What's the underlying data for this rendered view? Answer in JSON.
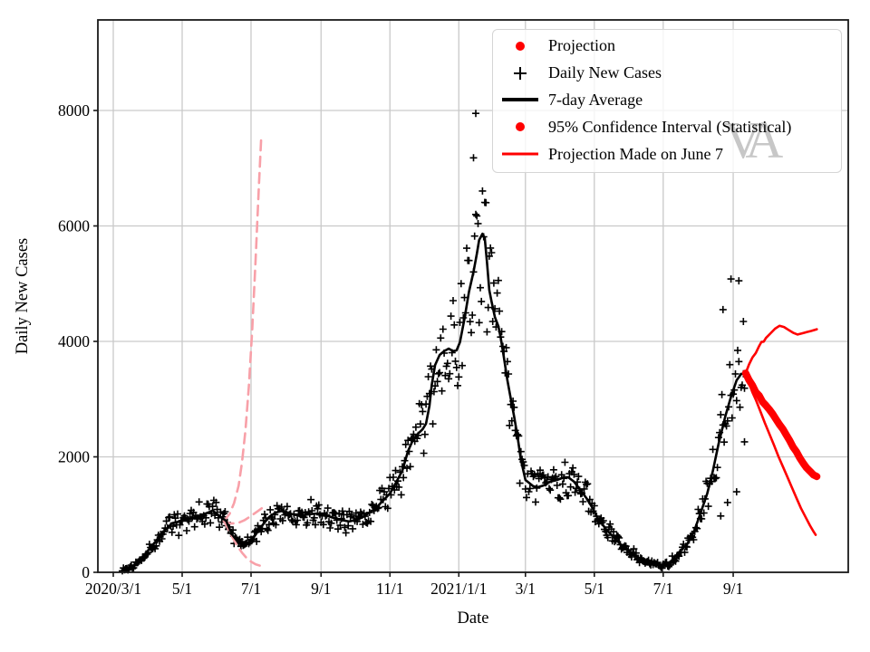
{
  "figure": {
    "watermark": "VA",
    "background": "#ffffff"
  },
  "axes": {
    "xlabel": "Date",
    "ylabel": "Daily New Cases",
    "x_ticks": [
      {
        "day": 0,
        "label": "2020/3/1"
      },
      {
        "day": 61,
        "label": "5/1"
      },
      {
        "day": 122,
        "label": "7/1"
      },
      {
        "day": 184,
        "label": "9/1"
      },
      {
        "day": 245,
        "label": "11/1"
      },
      {
        "day": 306,
        "label": "2021/1/1"
      },
      {
        "day": 365,
        "label": "3/1"
      },
      {
        "day": 426,
        "label": "5/1"
      },
      {
        "day": 487,
        "label": "7/1"
      },
      {
        "day": 549,
        "label": "9/1"
      }
    ],
    "y_ticks": [
      0,
      2000,
      4000,
      6000,
      8000
    ],
    "x_range_days": [
      -13.6,
      651
    ],
    "y_range": [
      0,
      9569
    ],
    "grid": true,
    "grid_color": "#c9c9c9",
    "spine_color": "#1a1a1a"
  },
  "legend": {
    "position": "upper right",
    "items": [
      {
        "marker": "dot",
        "color": "#ff0000",
        "label": "Projection"
      },
      {
        "marker": "plus",
        "color": "#000000",
        "label": "Daily New Cases"
      },
      {
        "marker": "line",
        "color": "#000000",
        "label": "7-day Average"
      },
      {
        "marker": "dot",
        "color": "#ff0000",
        "label": "95% Confidence Interval (Statistical)"
      },
      {
        "marker": "line",
        "color": "#ff0000",
        "label": "Projection Made on June 7"
      }
    ]
  },
  "colors": {
    "cases": "#000000",
    "average": "#000000",
    "projection": "#ff0000",
    "old_projection": "#f8a0a8",
    "watermark": "#c7c7c7"
  },
  "chart_data": {
    "type": "line",
    "title": "",
    "xlabel": "Date",
    "ylabel": "Daily New Cases",
    "x_unit": "days since 2020/3/1",
    "ylim": [
      0,
      9569
    ],
    "legend_position": "upper right",
    "series": [
      {
        "name": "7-day Average",
        "style": "solid",
        "color": "#000000",
        "width": 2.6,
        "points": [
          [
            14,
            60
          ],
          [
            20,
            150
          ],
          [
            28,
            310
          ],
          [
            36,
            500
          ],
          [
            44,
            690
          ],
          [
            52,
            850
          ],
          [
            61,
            890
          ],
          [
            68,
            925
          ],
          [
            76,
            975
          ],
          [
            84,
            1035
          ],
          [
            88,
            1070
          ],
          [
            94,
            975
          ],
          [
            100,
            890
          ],
          [
            105,
            660
          ],
          [
            110,
            535
          ],
          [
            115,
            455
          ],
          [
            120,
            500
          ],
          [
            124,
            595
          ],
          [
            129,
            735
          ],
          [
            134,
            865
          ],
          [
            139,
            975
          ],
          [
            144,
            1035
          ],
          [
            150,
            1070
          ],
          [
            156,
            1020
          ],
          [
            165,
            975
          ],
          [
            173,
            1005
          ],
          [
            181,
            1020
          ],
          [
            186,
            1005
          ],
          [
            193,
            955
          ],
          [
            201,
            910
          ],
          [
            209,
            880
          ],
          [
            215,
            910
          ],
          [
            221,
            955
          ],
          [
            227,
            1035
          ],
          [
            233,
            1115
          ],
          [
            238,
            1225
          ],
          [
            245,
            1365
          ],
          [
            250,
            1540
          ],
          [
            256,
            1760
          ],
          [
            261,
            2100
          ],
          [
            265,
            2275
          ],
          [
            269,
            2385
          ],
          [
            274,
            2480
          ],
          [
            277,
            2575
          ],
          [
            280,
            2885
          ],
          [
            282,
            3245
          ],
          [
            285,
            3590
          ],
          [
            289,
            3765
          ],
          [
            293,
            3830
          ],
          [
            297,
            3875
          ],
          [
            301,
            3830
          ],
          [
            304,
            3845
          ],
          [
            307,
            3985
          ],
          [
            311,
            4390
          ],
          [
            315,
            4860
          ],
          [
            319,
            5205
          ],
          [
            322,
            5520
          ],
          [
            324,
            5755
          ],
          [
            327,
            5865
          ],
          [
            329,
            5790
          ],
          [
            331,
            5365
          ],
          [
            333,
            4890
          ],
          [
            335,
            4690
          ],
          [
            338,
            4420
          ],
          [
            341,
            4265
          ],
          [
            343,
            4075
          ],
          [
            346,
            3715
          ],
          [
            349,
            3325
          ],
          [
            352,
            3010
          ],
          [
            355,
            2700
          ],
          [
            358,
            2350
          ],
          [
            361,
            1950
          ],
          [
            365,
            1600
          ],
          [
            372,
            1490
          ],
          [
            376,
            1475
          ],
          [
            381,
            1505
          ],
          [
            387,
            1570
          ],
          [
            393,
            1600
          ],
          [
            399,
            1645
          ],
          [
            403,
            1645
          ],
          [
            408,
            1570
          ],
          [
            413,
            1445
          ],
          [
            419,
            1285
          ],
          [
            424,
            1130
          ],
          [
            429,
            940
          ],
          [
            436,
            755
          ],
          [
            443,
            610
          ],
          [
            450,
            470
          ],
          [
            457,
            375
          ],
          [
            461,
            300
          ],
          [
            467,
            235
          ],
          [
            473,
            170
          ],
          [
            477,
            140
          ],
          [
            483,
            125
          ],
          [
            489,
            140
          ],
          [
            494,
            190
          ],
          [
            498,
            280
          ],
          [
            503,
            390
          ],
          [
            508,
            480
          ],
          [
            514,
            690
          ],
          [
            520,
            1020
          ],
          [
            526,
            1365
          ],
          [
            531,
            1755
          ],
          [
            536,
            2225
          ],
          [
            542,
            2700
          ],
          [
            547,
            3040
          ],
          [
            552,
            3325
          ],
          [
            556,
            3435
          ],
          [
            560,
            3450
          ]
        ]
      },
      {
        "name": "Projection",
        "style": "solid",
        "color": "#ff0000",
        "width": 8,
        "points": [
          [
            560,
            3450
          ],
          [
            563,
            3330
          ],
          [
            566,
            3240
          ],
          [
            569,
            3120
          ],
          [
            572,
            3060
          ],
          [
            575,
            2950
          ],
          [
            578,
            2890
          ],
          [
            581,
            2820
          ],
          [
            584,
            2740
          ],
          [
            587,
            2650
          ],
          [
            590,
            2560
          ],
          [
            593,
            2480
          ],
          [
            596,
            2380
          ],
          [
            599,
            2280
          ],
          [
            602,
            2170
          ],
          [
            605,
            2090
          ],
          [
            608,
            1980
          ],
          [
            611,
            1890
          ],
          [
            614,
            1810
          ],
          [
            617,
            1750
          ],
          [
            620,
            1690
          ],
          [
            623,
            1660
          ]
        ]
      },
      {
        "name": "95% Confidence Interval upper",
        "style": "solid",
        "color": "#ff0000",
        "width": 2.6,
        "points": [
          [
            560,
            3450
          ],
          [
            563,
            3600
          ],
          [
            566,
            3720
          ],
          [
            569,
            3800
          ],
          [
            572,
            3920
          ],
          [
            574,
            3990
          ],
          [
            576,
            3995
          ],
          [
            578,
            4060
          ],
          [
            582,
            4140
          ],
          [
            586,
            4220
          ],
          [
            590,
            4270
          ],
          [
            594,
            4250
          ],
          [
            598,
            4200
          ],
          [
            602,
            4150
          ],
          [
            606,
            4120
          ],
          [
            610,
            4140
          ],
          [
            614,
            4160
          ],
          [
            618,
            4180
          ],
          [
            623,
            4210
          ]
        ]
      },
      {
        "name": "95% Confidence Interval lower",
        "style": "solid",
        "color": "#ff0000",
        "width": 2.6,
        "points": [
          [
            560,
            3450
          ],
          [
            563,
            3280
          ],
          [
            566,
            3120
          ],
          [
            569,
            2990
          ],
          [
            573,
            2790
          ],
          [
            577,
            2590
          ],
          [
            581,
            2400
          ],
          [
            585,
            2210
          ],
          [
            589,
            2010
          ],
          [
            593,
            1830
          ],
          [
            597,
            1650
          ],
          [
            601,
            1470
          ],
          [
            605,
            1290
          ],
          [
            609,
            1110
          ],
          [
            613,
            960
          ],
          [
            617,
            810
          ],
          [
            620,
            710
          ],
          [
            622,
            650
          ]
        ]
      },
      {
        "name": "Projection Made on June 7 (upper)",
        "style": "dashed",
        "color": "#f8a0a8",
        "width": 2.6,
        "points": [
          [
            98,
            890
          ],
          [
            103,
            1010
          ],
          [
            107,
            1200
          ],
          [
            111,
            1500
          ],
          [
            114,
            1900
          ],
          [
            117,
            2450
          ],
          [
            120,
            3200
          ],
          [
            123,
            4200
          ],
          [
            126,
            5400
          ],
          [
            129,
            6700
          ],
          [
            131,
            7520
          ]
        ]
      },
      {
        "name": "Projection Made on June 7 (median)",
        "style": "dashed",
        "color": "#f8a0a8",
        "width": 2.6,
        "points": [
          [
            98,
            890
          ],
          [
            104,
            845
          ],
          [
            110,
            850
          ],
          [
            116,
            900
          ],
          [
            122,
            975
          ],
          [
            128,
            1060
          ],
          [
            133,
            1130
          ]
        ]
      },
      {
        "name": "Projection Made on June 7 (lower)",
        "style": "dashed",
        "color": "#f8a0a8",
        "width": 2.6,
        "points": [
          [
            98,
            890
          ],
          [
            102,
            740
          ],
          [
            106,
            590
          ],
          [
            110,
            450
          ],
          [
            114,
            340
          ],
          [
            118,
            250
          ],
          [
            122,
            185
          ],
          [
            126,
            140
          ],
          [
            130,
            115
          ]
        ]
      }
    ],
    "scatter": {
      "name": "Daily New Cases",
      "marker": "plus",
      "color": "#000000",
      "day_range": [
        8,
        559
      ],
      "jitter": {
        "seed": 1337,
        "rel": 0.18,
        "weekly": 0.08,
        "abs": 45
      },
      "outliers": [
        [
          319,
          7180
        ],
        [
          321,
          7950
        ],
        [
          547,
          5080
        ],
        [
          554,
          5050
        ],
        [
          540,
          4550
        ],
        [
          558,
          4345
        ],
        [
          559,
          2260
        ],
        [
          552,
          1395
        ],
        [
          544,
          1210
        ],
        [
          538,
          975
        ]
      ]
    }
  }
}
